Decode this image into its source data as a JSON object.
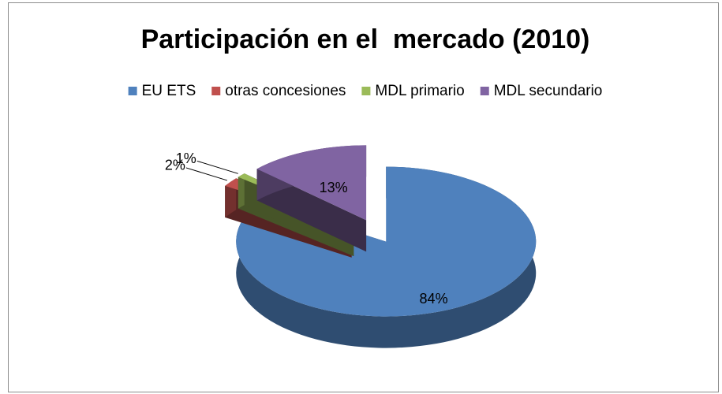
{
  "chart_data": {
    "type": "pie3d",
    "title": "Participación en el  mercado (2010)",
    "categories": [
      "EU ETS",
      "otras concesiones",
      "MDL primario",
      "MDL secundario"
    ],
    "values": [
      84,
      2,
      1,
      13
    ],
    "value_labels": [
      "84%",
      "2%",
      "1%",
      "13%"
    ],
    "colors": [
      "#4f81bd",
      "#c0504d",
      "#9bbb59",
      "#8064a2"
    ],
    "legend": "top"
  }
}
